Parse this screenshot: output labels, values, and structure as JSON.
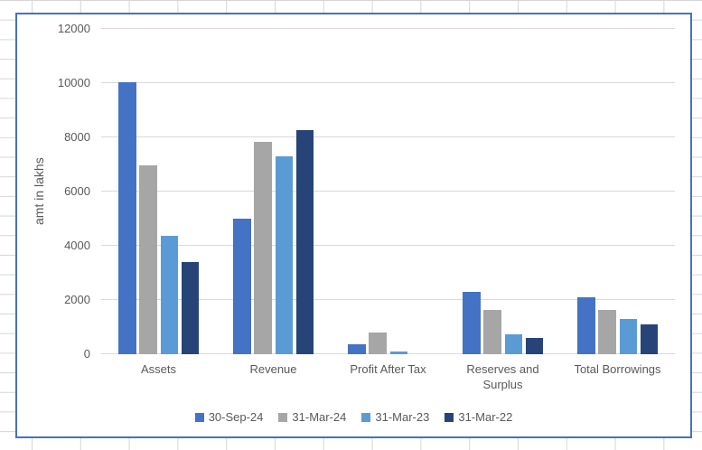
{
  "chart_data": {
    "type": "bar",
    "title": "",
    "y_axis_title": "amt in lakhs",
    "categories": [
      "Assets",
      "Revenue",
      "Profit After Tax",
      "Reserves and Surplus",
      "Total Borrowings"
    ],
    "series": [
      {
        "name": "30-Sep-24",
        "color": "#4472C4",
        "values": [
          10040,
          5000,
          380,
          2310,
          2090
        ]
      },
      {
        "name": "31-Mar-24",
        "color": "#A6A6A6",
        "values": [
          6980,
          7840,
          800,
          1650,
          1640
        ]
      },
      {
        "name": "31-Mar-23",
        "color": "#5B9BD5",
        "values": [
          4380,
          7290,
          100,
          750,
          1290
        ]
      },
      {
        "name": "31-Mar-22",
        "color": "#264478",
        "values": [
          3390,
          8270,
          0,
          600,
          1090
        ]
      }
    ],
    "ylim": [
      0,
      12000
    ],
    "y_ticks": [
      0,
      2000,
      4000,
      6000,
      8000,
      10000,
      12000
    ],
    "grid": true,
    "legend_position": "bottom",
    "axis_text_color": "#595959",
    "gridline_color": "#D9D9D9",
    "chart_border_color": "#4472C4",
    "worksheet_gridline_color": "#D6D6D6"
  }
}
